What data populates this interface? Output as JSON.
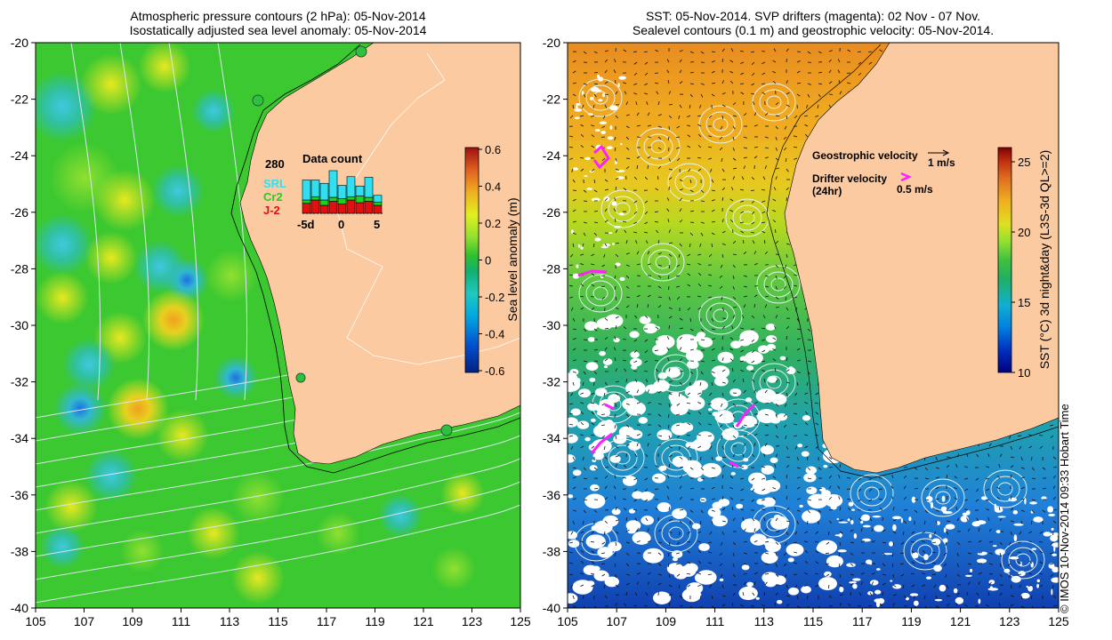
{
  "left_panel": {
    "title_line1": "Atmospheric pressure contours (2 hPa): 05-Nov-2014",
    "title_line2": "Isostatically adjusted sea level anomaly: 05-Nov-2014",
    "colorbar": {
      "label": "Sea level anomaly (m)",
      "ticks": [
        "0.6",
        "0.4",
        "0.2",
        "0",
        "-0.2",
        "-0.4",
        "-0.6"
      ],
      "colors": [
        "#002080",
        "#0050d0",
        "#00a8e0",
        "#20c8c0",
        "#10b070",
        "#30c030",
        "#90e030",
        "#e0f020",
        "#f0b020",
        "#e06020",
        "#a01010"
      ]
    },
    "data_count": {
      "title": "Data count",
      "max_label": "280",
      "legend": [
        {
          "label": "SRL",
          "color": "#30e0f0"
        },
        {
          "label": "Cr2",
          "color": "#20d020"
        },
        {
          "label": "J-2",
          "color": "#e01010"
        }
      ],
      "x_ticks": [
        "-5d",
        "0",
        "5"
      ],
      "bars": [
        {
          "srl": 30,
          "cr2": 5,
          "j2": 15
        },
        {
          "srl": 25,
          "cr2": 5,
          "j2": 20
        },
        {
          "srl": 25,
          "cr2": 8,
          "j2": 12
        },
        {
          "srl": 40,
          "cr2": 6,
          "j2": 18
        },
        {
          "srl": 20,
          "cr2": 8,
          "j2": 14
        },
        {
          "srl": 30,
          "cr2": 5,
          "j2": 20
        },
        {
          "srl": 15,
          "cr2": 10,
          "j2": 16
        },
        {
          "srl": 30,
          "cr2": 6,
          "j2": 18
        },
        {
          "srl": 10,
          "cr2": 5,
          "j2": 12
        }
      ]
    }
  },
  "right_panel": {
    "title_line1": "SST: 05-Nov-2014. SVP drifters (magenta): 02 Nov - 07 Nov.",
    "title_line2": "Sealevel contours (0.1 m) and geostrophic velocity: 05-Nov-2014.",
    "colorbar": {
      "label": "SST (°C) 3d night&day (L3S-3d QL>=2)",
      "ticks": [
        "25",
        "20",
        "15",
        "10"
      ],
      "colors": [
        "#000080",
        "#0030c0",
        "#0080e0",
        "#10b0d0",
        "#20b060",
        "#40c040",
        "#90e030",
        "#e0e020",
        "#f0b020",
        "#e07020",
        "#c03010",
        "#800000"
      ]
    },
    "legend": {
      "geostrophic_label": "Geostrophic velocity",
      "geostrophic_scale": "1 m/s",
      "drifter_label": "Drifter velocity",
      "drifter_sub": "(24hr)",
      "drifter_scale": "0.5 m/s"
    }
  },
  "axes": {
    "y_ticks": [
      "-20",
      "-22",
      "-24",
      "-26",
      "-28",
      "-30",
      "-32",
      "-34",
      "-36",
      "-38",
      "-40"
    ],
    "x_ticks": [
      "105",
      "107",
      "109",
      "111",
      "113",
      "115",
      "117",
      "119",
      "121",
      "123",
      "125"
    ]
  },
  "colors": {
    "land": "#fbcaa0",
    "sla_base": "#3cc830",
    "sst_warm": "#e89a20",
    "sst_mid": "#b0d020",
    "sst_cool": "#20a8d0",
    "sst_cold": "#1050c0",
    "drifter": "#ff20ff"
  },
  "copyright": "© IMOS 10-Nov-2014 09:33 Hobart Time"
}
